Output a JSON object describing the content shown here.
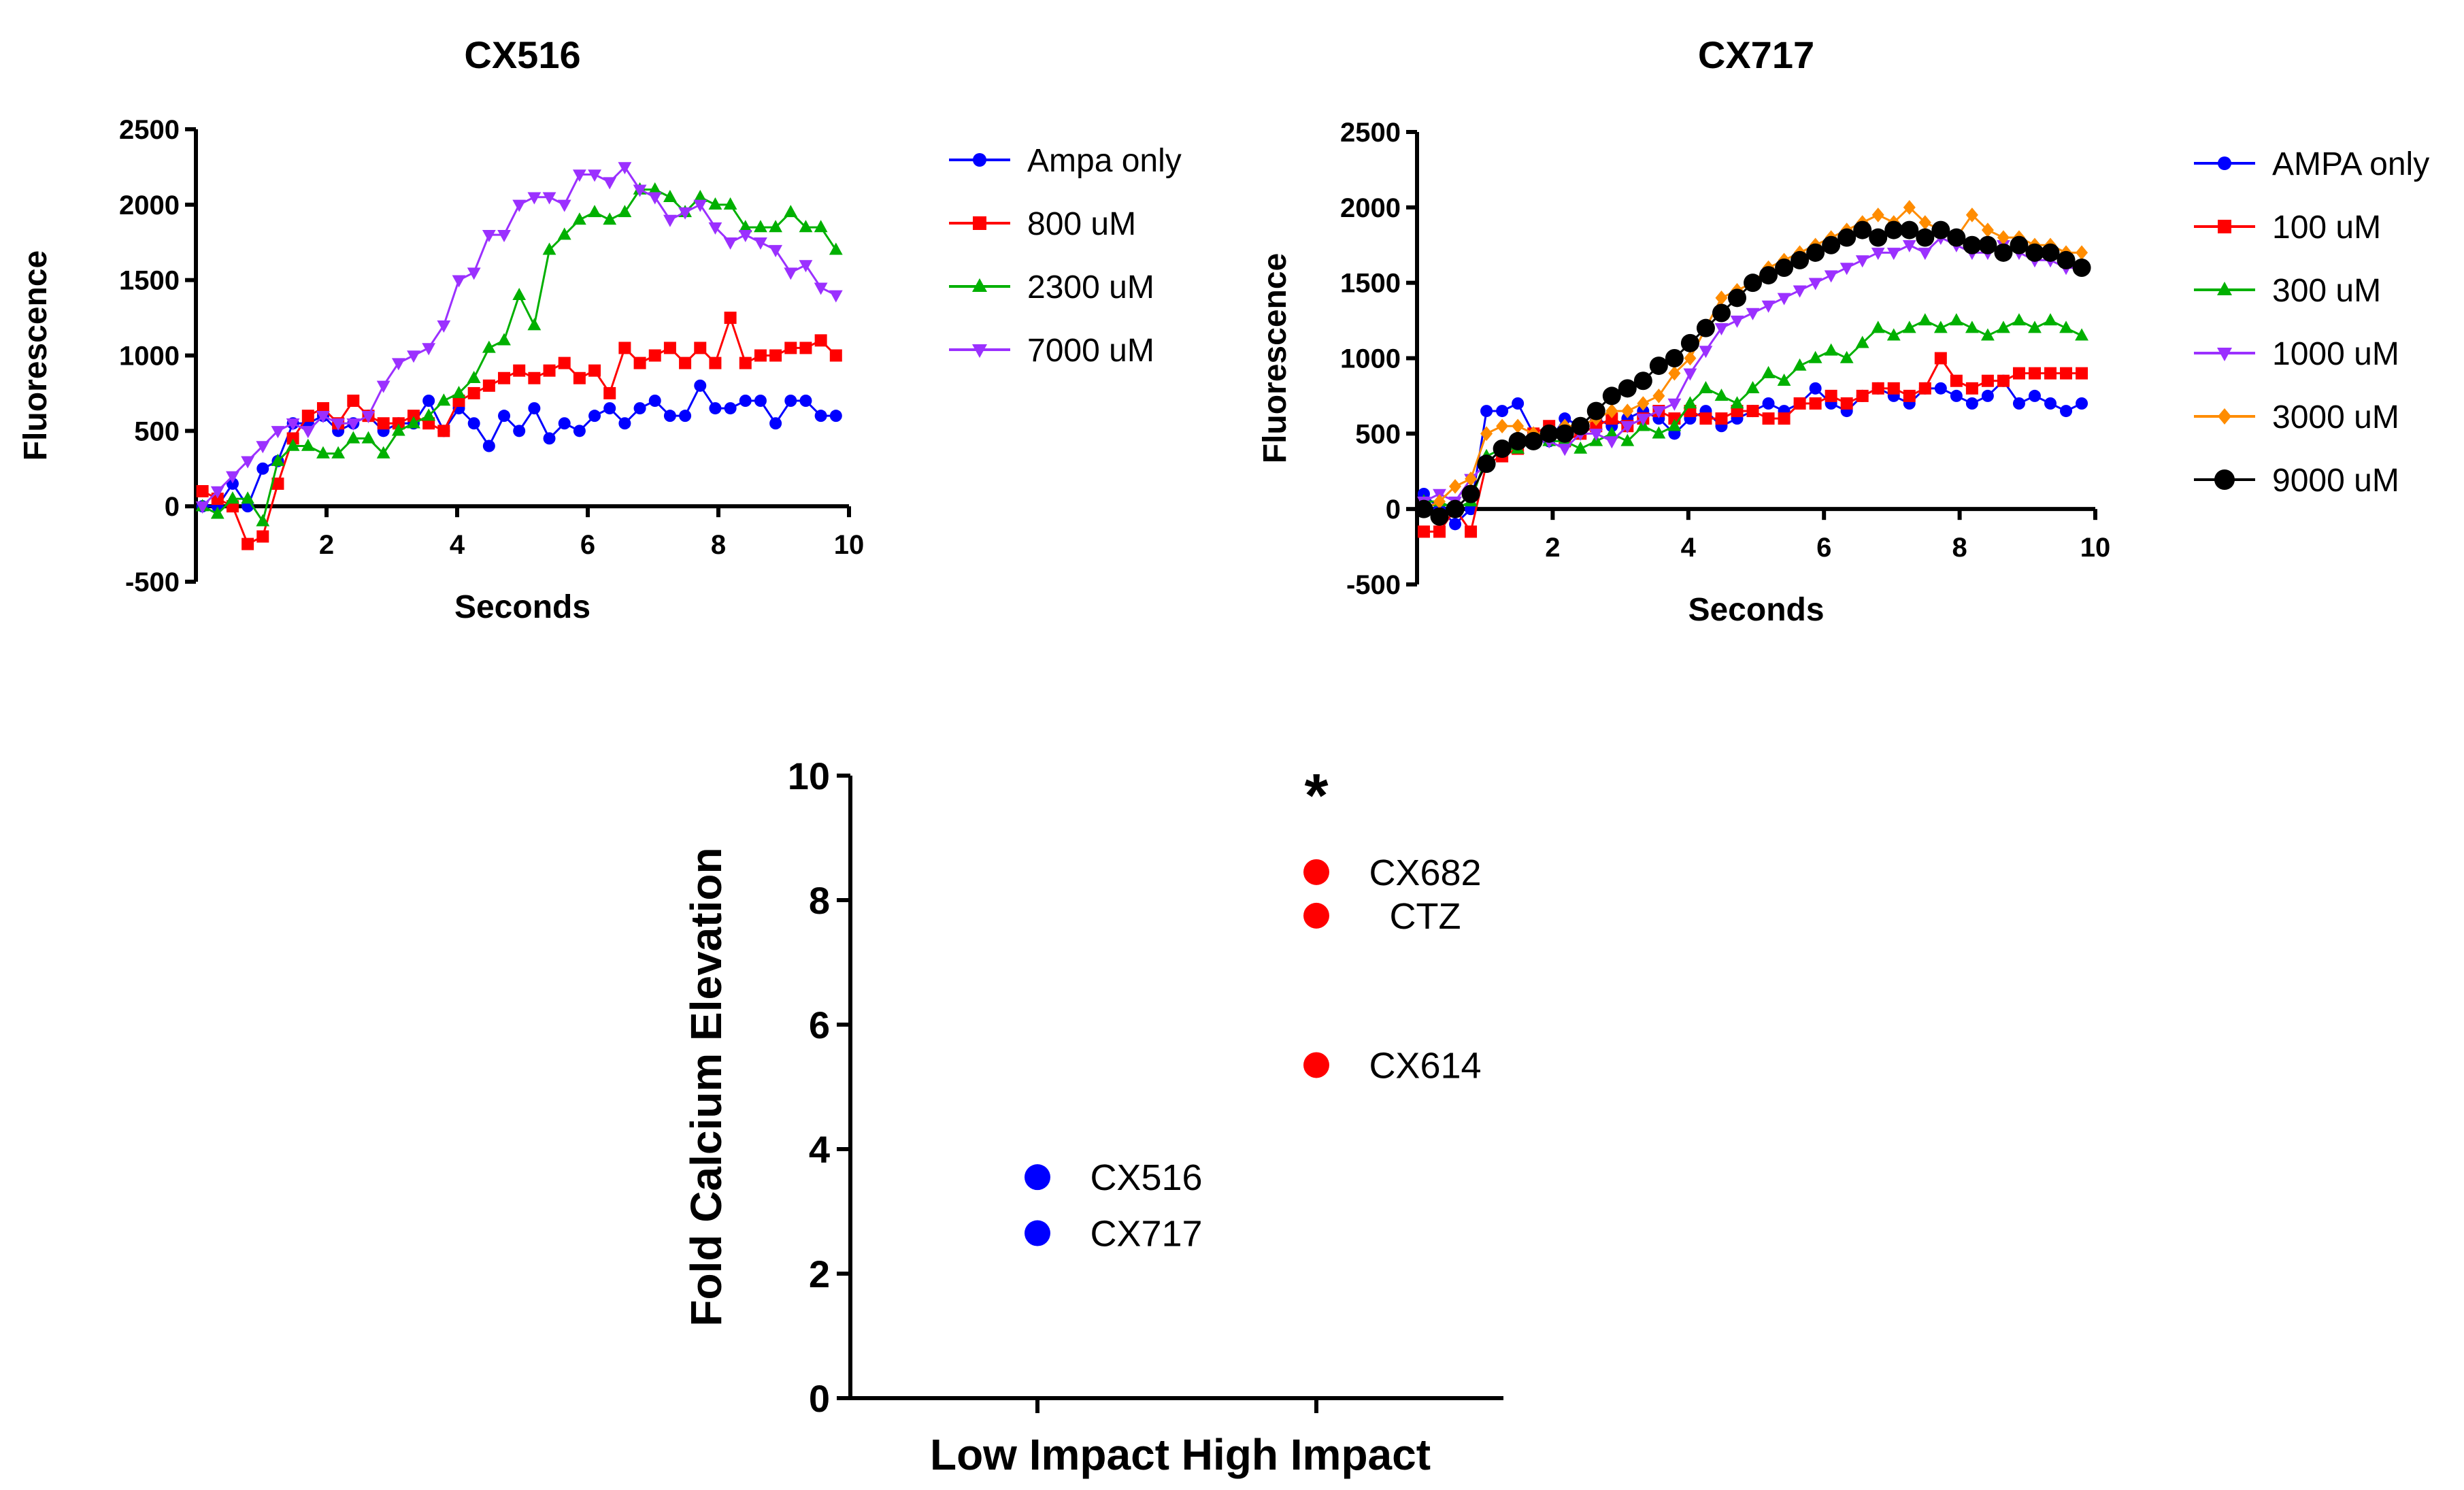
{
  "chart_data": [
    {
      "type": "line",
      "title": "CX516",
      "xlabel": "Seconds",
      "ylabel": "Fluorescence",
      "xlim": [
        0,
        10
      ],
      "ylim": [
        -500,
        2500
      ],
      "xticks": [
        "2",
        "4",
        "6",
        "8",
        "10"
      ],
      "yticks": [
        "-500",
        "0",
        "500",
        "1000",
        "1500",
        "2000",
        "2500"
      ],
      "legend_position": "right",
      "series": [
        {
          "name": "Ampa only",
          "color": "#0000ff",
          "marker": "circle",
          "values": [
            0,
            0,
            150,
            0,
            250,
            300,
            550,
            550,
            600,
            500,
            550,
            600,
            500,
            550,
            550,
            700,
            500,
            650,
            550,
            400,
            600,
            500,
            650,
            450,
            550,
            500,
            600,
            650,
            550,
            650,
            700,
            600,
            600,
            800,
            650,
            650,
            700,
            700,
            550,
            700,
            700,
            600,
            600
          ]
        },
        {
          "name": "800 uM",
          "color": "#ff0000",
          "marker": "square",
          "values": [
            100,
            50,
            0,
            -250,
            -200,
            150,
            450,
            600,
            650,
            550,
            700,
            600,
            550,
            550,
            600,
            550,
            500,
            700,
            750,
            800,
            850,
            900,
            850,
            900,
            950,
            850,
            900,
            750,
            1050,
            950,
            1000,
            1050,
            950,
            1050,
            950,
            1250,
            950,
            1000,
            1000,
            1050,
            1050,
            1100,
            1000
          ]
        },
        {
          "name": "2300 uM",
          "color": "#00b000",
          "marker": "triangle-up",
          "values": [
            0,
            -50,
            50,
            50,
            -100,
            300,
            400,
            400,
            350,
            350,
            450,
            450,
            350,
            500,
            550,
            600,
            700,
            750,
            850,
            1050,
            1100,
            1400,
            1200,
            1700,
            1800,
            1900,
            1950,
            1900,
            1950,
            2100,
            2100,
            2050,
            1950,
            2050,
            2000,
            2000,
            1850,
            1850,
            1850,
            1950,
            1850,
            1850,
            1700
          ]
        },
        {
          "name": "7000 uM",
          "color": "#9b30ff",
          "marker": "triangle-down",
          "values": [
            0,
            100,
            200,
            300,
            400,
            500,
            550,
            500,
            600,
            550,
            550,
            600,
            800,
            950,
            1000,
            1050,
            1200,
            1500,
            1550,
            1800,
            1800,
            2000,
            2050,
            2050,
            2000,
            2200,
            2200,
            2150,
            2250,
            2100,
            2050,
            1900,
            1950,
            2000,
            1850,
            1750,
            1800,
            1750,
            1700,
            1550,
            1600,
            1450,
            1400
          ]
        }
      ]
    },
    {
      "type": "line",
      "title": "CX717",
      "xlabel": "Seconds",
      "ylabel": "Fluorescence",
      "xlim": [
        0,
        10
      ],
      "ylim": [
        -500,
        2500
      ],
      "xticks": [
        "2",
        "4",
        "6",
        "8",
        "10"
      ],
      "yticks": [
        "-500",
        "0",
        "500",
        "1000",
        "1500",
        "2000",
        "2500"
      ],
      "legend_position": "right",
      "series": [
        {
          "name": "AMPA only",
          "color": "#0000ff",
          "marker": "circle",
          "values": [
            100,
            0,
            -100,
            0,
            650,
            650,
            700,
            500,
            450,
            600,
            550,
            600,
            550,
            600,
            650,
            600,
            500,
            600,
            650,
            550,
            600,
            650,
            700,
            650,
            700,
            800,
            700,
            650,
            750,
            800,
            750,
            700,
            800,
            800,
            750,
            700,
            750,
            850,
            700,
            750,
            700,
            650,
            700
          ]
        },
        {
          "name": "100 uM",
          "color": "#ff0000",
          "marker": "square",
          "values": [
            -150,
            -150,
            0,
            -150,
            300,
            350,
            400,
            500,
            550,
            450,
            500,
            550,
            600,
            550,
            600,
            650,
            600,
            650,
            600,
            600,
            650,
            650,
            600,
            600,
            700,
            700,
            750,
            700,
            750,
            800,
            800,
            750,
            800,
            1000,
            850,
            800,
            850,
            850,
            900,
            900,
            900,
            900,
            900
          ]
        },
        {
          "name": "300 uM",
          "color": "#00b000",
          "marker": "triangle-up",
          "values": [
            50,
            50,
            0,
            50,
            350,
            400,
            400,
            450,
            450,
            450,
            400,
            450,
            500,
            450,
            550,
            500,
            550,
            700,
            800,
            750,
            700,
            800,
            900,
            850,
            950,
            1000,
            1050,
            1000,
            1100,
            1200,
            1150,
            1200,
            1250,
            1200,
            1250,
            1200,
            1150,
            1200,
            1250,
            1200,
            1250,
            1200,
            1150
          ]
        },
        {
          "name": "1000 uM",
          "color": "#9b30ff",
          "marker": "triangle-down",
          "values": [
            50,
            100,
            50,
            200,
            300,
            400,
            450,
            450,
            450,
            400,
            500,
            500,
            450,
            550,
            600,
            650,
            700,
            900,
            1050,
            1200,
            1250,
            1300,
            1350,
            1400,
            1450,
            1500,
            1550,
            1600,
            1650,
            1700,
            1700,
            1750,
            1700,
            1800,
            1750,
            1700,
            1700,
            1750,
            1700,
            1650,
            1650,
            1600,
            1600
          ]
        },
        {
          "name": "3000 uM",
          "color": "#ff8c00",
          "marker": "diamond",
          "values": [
            0,
            50,
            150,
            200,
            500,
            550,
            550,
            500,
            500,
            550,
            550,
            600,
            650,
            650,
            700,
            750,
            900,
            1000,
            1200,
            1400,
            1450,
            1500,
            1600,
            1650,
            1700,
            1750,
            1800,
            1850,
            1900,
            1950,
            1900,
            2000,
            1900,
            1850,
            1800,
            1950,
            1850,
            1800,
            1800,
            1750,
            1750,
            1700,
            1700
          ]
        },
        {
          "name": "9000 uM",
          "color": "#000000",
          "marker": "circle-big",
          "values": [
            0,
            -50,
            0,
            100,
            300,
            400,
            450,
            450,
            500,
            500,
            550,
            650,
            750,
            800,
            850,
            950,
            1000,
            1100,
            1200,
            1300,
            1400,
            1500,
            1550,
            1600,
            1650,
            1700,
            1750,
            1800,
            1850,
            1800,
            1850,
            1850,
            1800,
            1850,
            1800,
            1750,
            1750,
            1700,
            1750,
            1700,
            1700,
            1650,
            1600
          ]
        }
      ]
    },
    {
      "type": "scatter",
      "xlabel": "Low Impact High Impact",
      "ylabel": "Fold Calcium Elevation",
      "ylim": [
        0,
        10
      ],
      "yticks": [
        "0",
        "2",
        "4",
        "6",
        "8",
        "10"
      ],
      "categories": [
        "Low Impact",
        "High Impact"
      ],
      "annotation": "*",
      "points": [
        {
          "label": "CX516",
          "category": "Low Impact",
          "value": 3.55,
          "color": "#0000ff"
        },
        {
          "label": "CX717",
          "category": "Low Impact",
          "value": 2.65,
          "color": "#0000ff"
        },
        {
          "label": "CX682",
          "category": "High Impact",
          "value": 8.45,
          "color": "#ff0000"
        },
        {
          "label": "CTZ",
          "category": "High Impact",
          "value": 7.75,
          "color": "#ff0000"
        },
        {
          "label": "CX614",
          "category": "High Impact",
          "value": 5.35,
          "color": "#ff0000"
        }
      ]
    }
  ]
}
